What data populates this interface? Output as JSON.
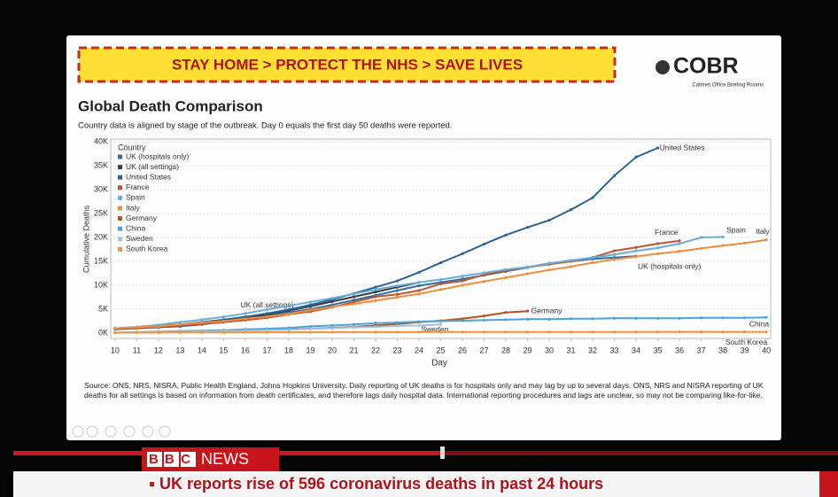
{
  "banner": {
    "text": "STAY HOME > PROTECT THE NHS > SAVE LIVES"
  },
  "logo": {
    "title": "COBR",
    "subtitle": "Cabinet Office Briefing Rooms"
  },
  "chart_data": {
    "type": "line",
    "title": "Global Death Comparison",
    "subtitle": "Country data is aligned by stage of the outbreak. Day 0 equals the first day 50 deaths were reported.",
    "x_label": "Day",
    "y_label": "Cumulative Deaths",
    "legend_title": "Country",
    "legend": "upper left",
    "grid": true,
    "x": [
      10,
      11,
      12,
      13,
      14,
      15,
      16,
      17,
      18,
      19,
      20,
      21,
      22,
      23,
      24,
      25,
      26,
      27,
      28,
      29,
      30,
      31,
      32,
      33,
      34,
      35,
      36,
      37,
      38,
      39,
      40
    ],
    "xlim": [
      9.8,
      40.2
    ],
    "xticks": [
      10,
      11,
      12,
      13,
      14,
      15,
      16,
      17,
      18,
      19,
      20,
      21,
      22,
      23,
      24,
      25,
      26,
      27,
      28,
      29,
      30,
      31,
      32,
      33,
      34,
      35,
      36,
      37,
      38,
      39,
      40
    ],
    "ylim": [
      0,
      40000
    ],
    "yticks": [
      {
        "value": 0,
        "label": "0K"
      },
      {
        "value": 5000,
        "label": "5K"
      },
      {
        "value": 10000,
        "label": "10K"
      },
      {
        "value": 15000,
        "label": "15K"
      },
      {
        "value": 20000,
        "label": "20K"
      },
      {
        "value": 25000,
        "label": "25K"
      },
      {
        "value": 30000,
        "label": "30K"
      },
      {
        "value": 35000,
        "label": "35K"
      },
      {
        "value": 40000,
        "label": "40K"
      }
    ],
    "series": [
      {
        "name": "UK (hospitals only)",
        "color": "#2f6fa8",
        "values": [
          800,
          1000,
          1200,
          1400,
          1800,
          2400,
          2900,
          3600,
          4300,
          5000,
          5900,
          6900,
          7900,
          8900,
          9900,
          10600,
          11300,
          12100,
          12900,
          13700,
          14600,
          15000,
          15500,
          15800,
          16100,
          null,
          null,
          null,
          null,
          null,
          null
        ]
      },
      {
        "name": "UK (all settings)",
        "color": "#3d3d3d",
        "values": [
          900,
          1100,
          1300,
          1600,
          2000,
          2600,
          3200,
          3900,
          4700,
          5600,
          6600,
          7600,
          8600,
          9600,
          10600,
          null,
          null,
          null,
          null,
          null,
          null,
          null,
          null,
          null,
          null,
          null,
          null,
          null,
          null,
          null,
          null
        ]
      },
      {
        "name": "United States",
        "color": "#2a6496",
        "values": [
          1000,
          1200,
          1500,
          1800,
          2300,
          2800,
          3400,
          4100,
          4900,
          5900,
          7000,
          8300,
          9600,
          10900,
          12700,
          14700,
          16600,
          18600,
          20500,
          22100,
          23600,
          25800,
          28300,
          32900,
          36800,
          38700,
          null,
          null,
          null,
          null,
          null
        ]
      },
      {
        "name": "France",
        "color": "#c0562b",
        "values": [
          900,
          1100,
          1300,
          1600,
          1900,
          2300,
          2700,
          3200,
          3900,
          4500,
          5400,
          6500,
          7600,
          8100,
          8900,
          10300,
          10900,
          12200,
          13100,
          13800,
          14400,
          15000,
          15800,
          17200,
          17900,
          18700,
          19300,
          null,
          null,
          null,
          null
        ]
      },
      {
        "name": "Spain",
        "color": "#6aaed8",
        "values": [
          1000,
          1300,
          1700,
          2300,
          2800,
          3400,
          4100,
          4900,
          5700,
          6500,
          7300,
          8200,
          9100,
          9900,
          10600,
          11200,
          11900,
          12600,
          13300,
          13800,
          14600,
          15200,
          15800,
          16400,
          17200,
          17800,
          18700,
          20000,
          20100,
          null,
          null
        ]
      },
      {
        "name": "Italy",
        "color": "#f08c3c",
        "values": [
          1000,
          1200,
          1400,
          1800,
          2200,
          2500,
          3000,
          3400,
          4000,
          4800,
          5500,
          6100,
          6800,
          7500,
          8200,
          9100,
          10000,
          10800,
          11600,
          12400,
          13200,
          13900,
          14700,
          15400,
          16000,
          16600,
          17100,
          17700,
          18300,
          18800,
          19500
        ]
      },
      {
        "name": "Germany",
        "color": "#b5541e",
        "values": [
          100,
          150,
          200,
          260,
          330,
          430,
          530,
          680,
          780,
          920,
          1100,
          1300,
          1600,
          1900,
          2300,
          2600,
          3000,
          3600,
          4300,
          4600,
          null,
          null,
          null,
          null,
          null,
          null,
          null,
          null,
          null,
          null,
          null
        ]
      },
      {
        "name": "China",
        "color": "#4aa3df",
        "values": [
          100,
          200,
          300,
          400,
          500,
          600,
          800,
          900,
          1100,
          1400,
          1600,
          1800,
          2100,
          2200,
          2400,
          2500,
          2600,
          2700,
          2800,
          2900,
          2900,
          3000,
          3000,
          3100,
          3100,
          3100,
          3100,
          3200,
          3200,
          3200,
          3300
        ]
      },
      {
        "name": "Sweden",
        "color": "#9fc4e0",
        "values": [
          100,
          150,
          200,
          250,
          350,
          400,
          500,
          600,
          700,
          900,
          1000,
          1200,
          1300,
          1500,
          1600,
          1800,
          null,
          null,
          null,
          null,
          null,
          null,
          null,
          null,
          null,
          null,
          null,
          null,
          null,
          null,
          null
        ]
      },
      {
        "name": "South Korea",
        "color": "#f5933a",
        "values": [
          100,
          110,
          120,
          130,
          140,
          150,
          160,
          170,
          180,
          190,
          200,
          200,
          210,
          210,
          220,
          220,
          230,
          230,
          230,
          240,
          240,
          240,
          240,
          240,
          240,
          250,
          250,
          250,
          250,
          250,
          250
        ]
      }
    ]
  },
  "source": "Source: ONS, NRS, NISRA, Public Health England, Johns Hopkins University. Daily reporting of UK deaths is for hospitals only and may lag by up to several days. ONS, NRS and NISRA reporting of UK deaths for all settings is based on information from death certificates, and therefore lags daily hospital data. International reporting procedures and lags are unclear, so may not be comparing like-for-like.",
  "news": {
    "brand": "BBC",
    "channel": "NEWS",
    "ticker": "UK reports rise of 596 coronavirus deaths in past 24 hours"
  }
}
